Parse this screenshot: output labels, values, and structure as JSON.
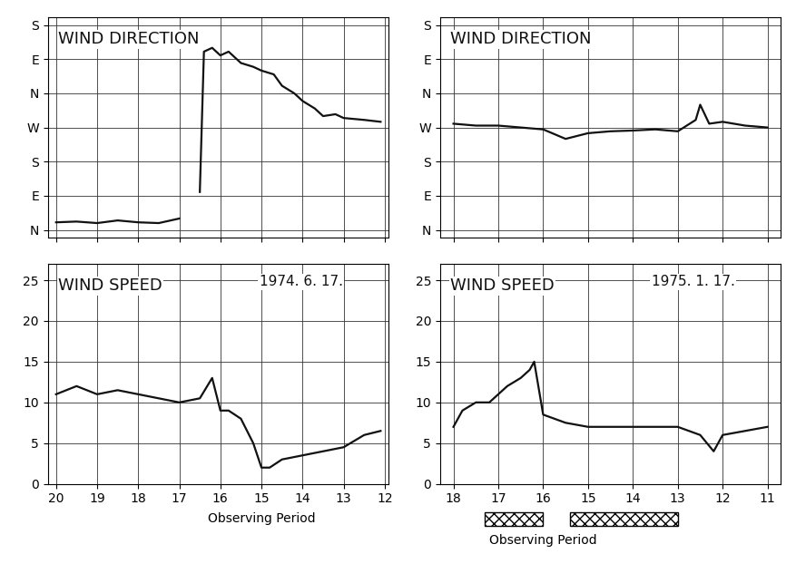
{
  "chart_data": [
    {
      "type": "line",
      "title": "WIND DIRECTION",
      "x": [
        20,
        19.5,
        19,
        18.5,
        18,
        17.5,
        17,
        16.7,
        16.5,
        16.4,
        16.2,
        16,
        15.8,
        15.5,
        15.2,
        15,
        14.7,
        14.5,
        14.2,
        14,
        13.7,
        13.5,
        13.2,
        13,
        12.5,
        12.1
      ],
      "values": [
        20,
        22,
        18,
        25,
        20,
        18,
        30,
        null,
        100,
        470,
        480,
        460,
        470,
        440,
        430,
        420,
        410,
        380,
        360,
        340,
        320,
        300,
        305,
        295,
        290,
        285
      ],
      "color": "#111111",
      "xlim": [
        20.2,
        11.9
      ],
      "xticks": [
        20,
        19,
        18,
        17,
        16,
        15,
        14,
        13,
        12
      ],
      "ylim": [
        -20,
        560
      ],
      "yticks": [
        {
          "value": 0,
          "label": "N"
        },
        {
          "value": 90,
          "label": "E"
        },
        {
          "value": 180,
          "label": "S"
        },
        {
          "value": 270,
          "label": "W"
        },
        {
          "value": 360,
          "label": "N"
        },
        {
          "value": 450,
          "label": "E"
        },
        {
          "value": 540,
          "label": "S"
        }
      ],
      "grid": true,
      "tick_labels": "y"
    },
    {
      "type": "line",
      "title": "WIND DIRECTION",
      "x": [
        18,
        17.5,
        17,
        16.5,
        16,
        15.5,
        15,
        14.5,
        14,
        13.5,
        13,
        12.6,
        12.5,
        12.3,
        12,
        11.5,
        11
      ],
      "values": [
        280,
        275,
        275,
        270,
        265,
        240,
        255,
        260,
        262,
        265,
        260,
        290,
        330,
        280,
        285,
        275,
        270
      ],
      "color": "#111111",
      "xlim": [
        18.3,
        10.7
      ],
      "xticks": [
        18,
        17,
        16,
        15,
        14,
        13,
        12,
        11
      ],
      "ylim": [
        -20,
        560
      ],
      "yticks": [
        {
          "value": 0,
          "label": "N"
        },
        {
          "value": 90,
          "label": "E"
        },
        {
          "value": 180,
          "label": "S"
        },
        {
          "value": 270,
          "label": "W"
        },
        {
          "value": 360,
          "label": "N"
        },
        {
          "value": 450,
          "label": "E"
        },
        {
          "value": 540,
          "label": "S"
        }
      ],
      "grid": true,
      "tick_labels": "y"
    },
    {
      "type": "line",
      "title": "WIND SPEED",
      "subtitle": "1974. 6. 17.",
      "x": [
        20,
        19.5,
        19,
        18.5,
        18,
        17.5,
        17,
        16.5,
        16.2,
        16,
        15.8,
        15.5,
        15.2,
        15,
        14.8,
        14.5,
        14,
        13.5,
        13,
        12.5,
        12.1
      ],
      "values": [
        11,
        12,
        11,
        11.5,
        11,
        10.5,
        10,
        10.5,
        13,
        9,
        9,
        8,
        5,
        2,
        2,
        3,
        3.5,
        4,
        4.5,
        6,
        6.5
      ],
      "color": "#111111",
      "xlim": [
        20.2,
        11.9
      ],
      "xticks": [
        20,
        19,
        18,
        17,
        16,
        15,
        14,
        13,
        12
      ],
      "ylim": [
        0,
        27
      ],
      "yticks": [
        0,
        5,
        10,
        15,
        20,
        25
      ],
      "grid": true,
      "observing_period": {
        "label": "Observing Period",
        "x": 15
      }
    },
    {
      "type": "line",
      "title": "WIND SPEED",
      "subtitle": "1975. 1. 17.",
      "x": [
        18,
        17.8,
        17.5,
        17.2,
        17,
        16.8,
        16.5,
        16.3,
        16.2,
        16,
        15.5,
        15,
        14.5,
        14,
        13.5,
        13,
        12.5,
        12.2,
        12,
        11.5,
        11
      ],
      "values": [
        7,
        9,
        10,
        10,
        11,
        12,
        13,
        14,
        15,
        8.5,
        7.5,
        7,
        7,
        7,
        7,
        7,
        6,
        4,
        6,
        6.5,
        7
      ],
      "color": "#111111",
      "xlim": [
        18.3,
        10.7
      ],
      "xticks": [
        18,
        17,
        16,
        15,
        14,
        13,
        12,
        11
      ],
      "ylim": [
        0,
        27
      ],
      "yticks": [
        0,
        5,
        10,
        15,
        20,
        25
      ],
      "grid": true,
      "observing_period": {
        "label": "Observing Period",
        "spans": [
          [
            17.3,
            16.0
          ],
          [
            15.4,
            13.0
          ]
        ]
      }
    }
  ]
}
